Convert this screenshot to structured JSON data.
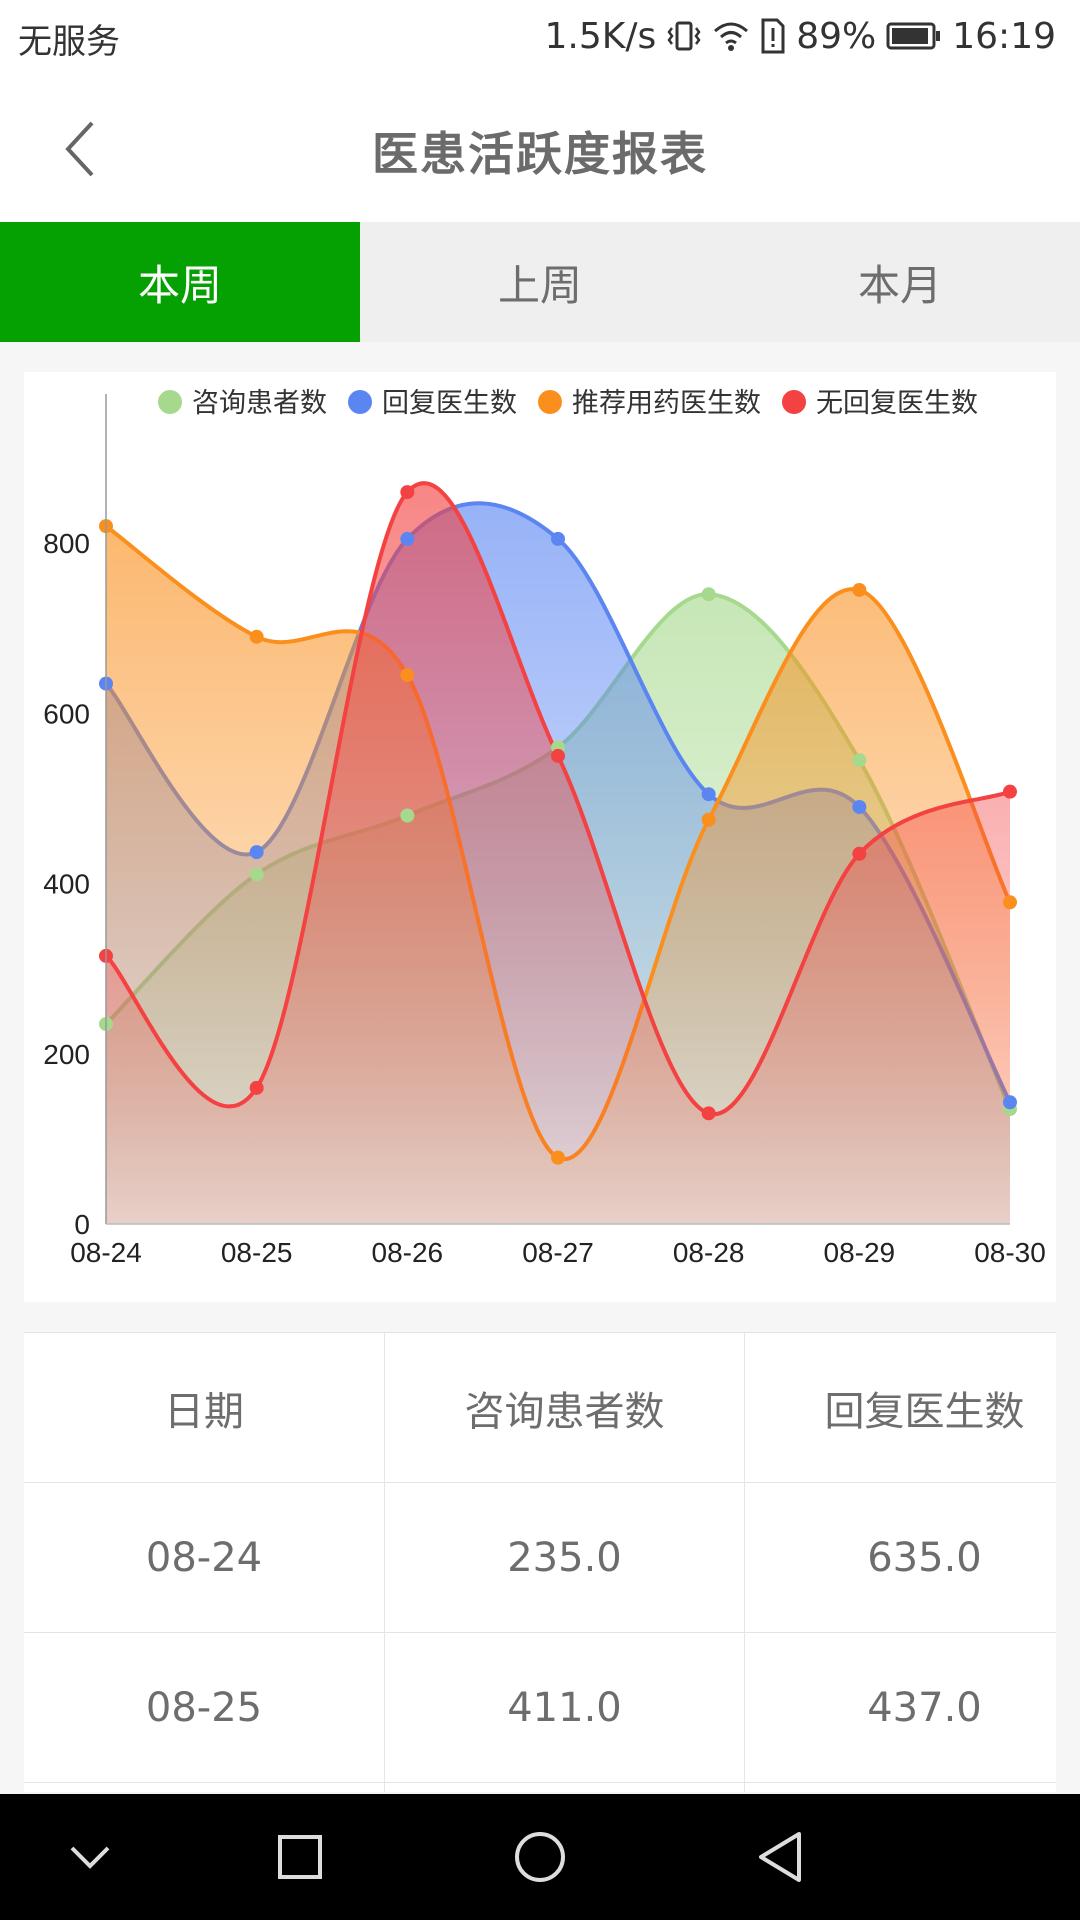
{
  "status_bar": {
    "carrier": "无服务",
    "speed": "1.5K/s",
    "battery": "89%",
    "time": "16:19"
  },
  "header": {
    "title": "医患活跃度报表"
  },
  "tabs": [
    {
      "label": "本周",
      "active": true
    },
    {
      "label": "上周",
      "active": false
    },
    {
      "label": "本月",
      "active": false
    }
  ],
  "colors": {
    "accent": "#05a103",
    "series_green": "#a6d98d",
    "series_blue": "#5b86f2",
    "series_orange": "#fa8f1d",
    "series_red": "#f44141"
  },
  "chart_data": {
    "type": "area",
    "categories": [
      "08-24",
      "08-25",
      "08-26",
      "08-27",
      "08-28",
      "08-29",
      "08-30"
    ],
    "series": [
      {
        "name": "咨询患者数",
        "color": "#a6d98d",
        "values": [
          235,
          411,
          480,
          560,
          740,
          545,
          135
        ]
      },
      {
        "name": "回复医生数",
        "color": "#5b86f2",
        "values": [
          635,
          437,
          805,
          805,
          505,
          490,
          143
        ]
      },
      {
        "name": "推荐用药医生数",
        "color": "#fa8f1d",
        "values": [
          820,
          690,
          645,
          78,
          475,
          745,
          378
        ]
      },
      {
        "name": "无回复医生数",
        "color": "#f44141",
        "values": [
          315,
          160,
          860,
          550,
          130,
          435,
          508
        ]
      }
    ],
    "yticks": [
      "0",
      "200",
      "400",
      "600",
      "800"
    ],
    "ylim": [
      0,
      940
    ],
    "legend": "top",
    "grid": false
  },
  "table": {
    "headers": [
      "日期",
      "咨询患者数",
      "回复医生数"
    ],
    "rows": [
      [
        "08-24",
        "235.0",
        "635.0"
      ],
      [
        "08-25",
        "411.0",
        "437.0"
      ]
    ]
  }
}
